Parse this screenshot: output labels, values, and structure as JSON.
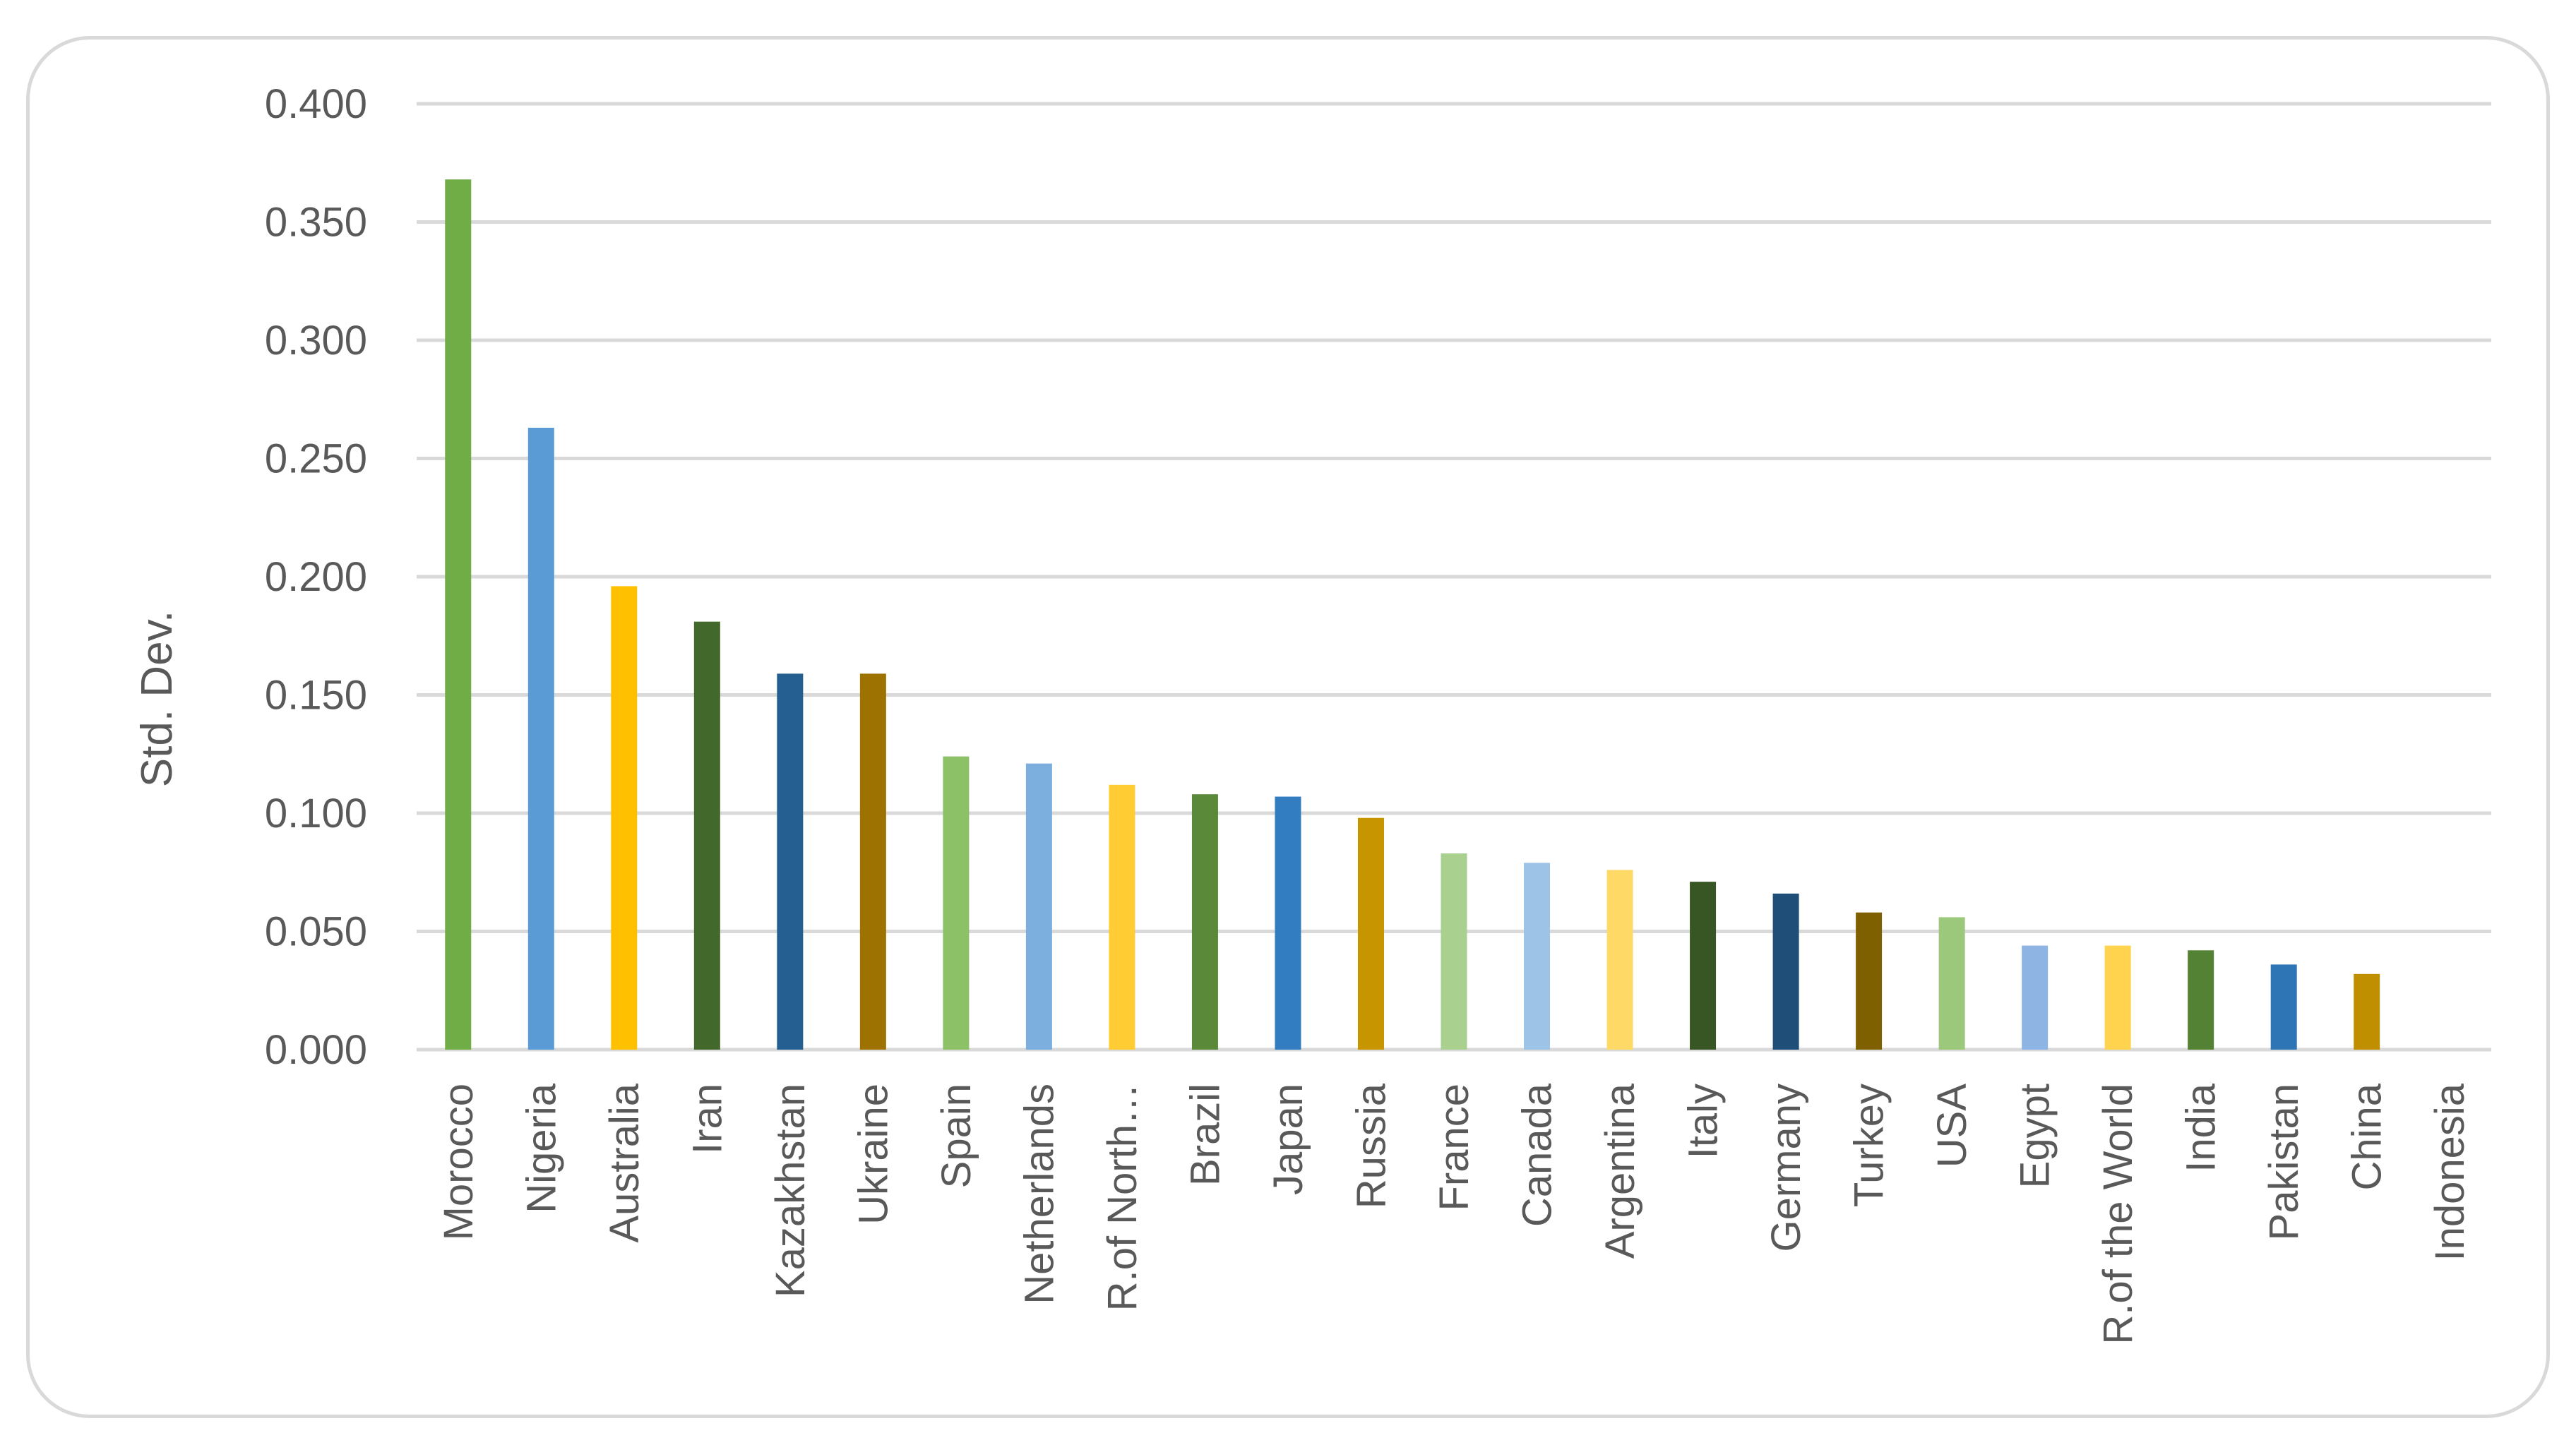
{
  "chart_data": {
    "type": "bar",
    "ylabel": "Std. Dev.",
    "ylim": [
      0,
      0.4
    ],
    "yticks": [
      "0.000",
      "0.050",
      "0.100",
      "0.150",
      "0.200",
      "0.250",
      "0.300",
      "0.350",
      "0.400"
    ],
    "grid": true,
    "categories": [
      "Morocco",
      "Nigeria",
      "Australia",
      "Iran",
      "Kazakhstan",
      "Ukraine",
      "Spain",
      "Netherlands",
      "R.of North…",
      "Brazil",
      "Japan",
      "Russia",
      "France",
      "Canada",
      "Argentina",
      "Italy",
      "Germany",
      "Turkey",
      "USA",
      "Egypt",
      "R.of the World",
      "India",
      "Pakistan",
      "China",
      "Indonesia"
    ],
    "values": [
      0.368,
      0.263,
      0.196,
      0.181,
      0.159,
      0.159,
      0.124,
      0.121,
      0.112,
      0.108,
      0.107,
      0.098,
      0.083,
      0.079,
      0.076,
      0.071,
      0.066,
      0.058,
      0.056,
      0.044,
      0.044,
      0.042,
      0.036,
      0.032,
      0.0
    ],
    "colors": [
      "#70ad47",
      "#5b9bd5",
      "#ffc000",
      "#43682b",
      "#255e91",
      "#9e7200",
      "#8cc168",
      "#7cafdd",
      "#ffcd33",
      "#5a8a39",
      "#327dc2",
      "#c69500",
      "#a9d08e",
      "#9dc3e6",
      "#ffd966",
      "#375623",
      "#1f4e79",
      "#7f6000",
      "#9bc87a",
      "#8db4e2",
      "#ffd34d",
      "#548235",
      "#2e75b6",
      "#bf8f00",
      "#000000"
    ]
  }
}
